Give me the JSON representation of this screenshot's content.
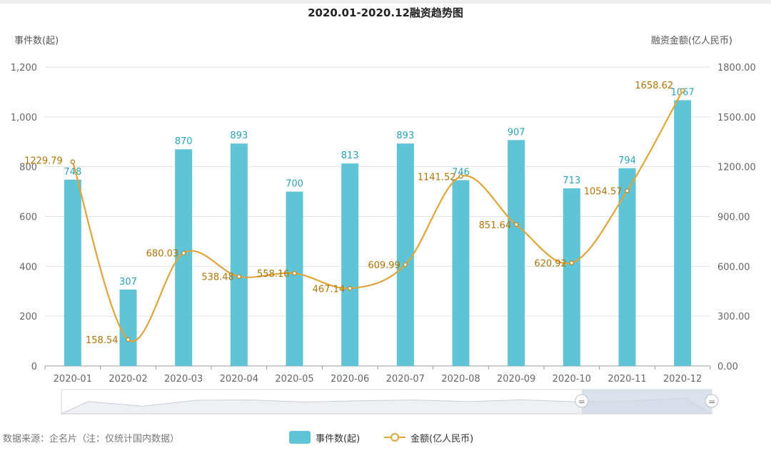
{
  "chart_data": {
    "type": "bar",
    "title": "2020.01-2020.12融资趋势图",
    "categories": [
      "2020-01",
      "2020-02",
      "2020-03",
      "2020-04",
      "2020-05",
      "2020-06",
      "2020-07",
      "2020-08",
      "2020-09",
      "2020-10",
      "2020-11",
      "2020-12"
    ],
    "left_axis": {
      "label": "事件数(起)",
      "ylim": [
        0,
        1200
      ],
      "ticks": [
        "0",
        "200",
        "400",
        "600",
        "800",
        "1,000",
        "1,200"
      ]
    },
    "right_axis": {
      "label": "融资金额(亿人民币)",
      "ylim": [
        0,
        1800
      ],
      "ticks": [
        "0.00",
        "300.00",
        "600.00",
        "900.00",
        "1200.00",
        "1500.00",
        "1800.00"
      ]
    },
    "series": [
      {
        "name": "事件数(起)",
        "type": "bar",
        "axis": "left",
        "values": [
          748,
          307,
          870,
          893,
          700,
          813,
          893,
          746,
          907,
          713,
          794,
          1067
        ],
        "labels": [
          "748",
          "307",
          "870",
          "893",
          "700",
          "813",
          "893",
          "746",
          "907",
          "713",
          "794",
          "1067"
        ]
      },
      {
        "name": "金额(亿人民币)",
        "type": "line",
        "axis": "right",
        "values": [
          1229.79,
          158.54,
          680.03,
          538.48,
          558.16,
          467.14,
          609.99,
          1141.52,
          851.64,
          620.92,
          1054.57,
          1658.62
        ],
        "labels": [
          "1229.79",
          "158.54",
          "680.03",
          "538.48",
          "558.16",
          "467.14",
          "609.99",
          "1141.52",
          "851.64",
          "620.92",
          "1054.57",
          "1658.62"
        ]
      }
    ],
    "grid": true,
    "legend": "bottom-center",
    "zoom_range": [
      0.8,
      1.0
    ]
  },
  "colors": {
    "bar": "#5fc4d5",
    "line": "#e0a43c",
    "bar_label": "#2aa3b8",
    "line_label": "#b07408"
  },
  "source": "数据来源：企名片（注：仅统计国内数据）",
  "zoom_handle_glyph": "="
}
